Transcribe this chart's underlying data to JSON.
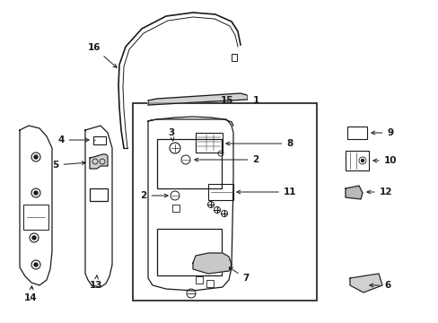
{
  "bg_color": "#ffffff",
  "line_color": "#1a1a1a",
  "fig_width": 4.89,
  "fig_height": 3.6,
  "dpi": 100,
  "label_fontsize": 7.5,
  "arrow_lw": 0.7,
  "part_lw": 0.9
}
